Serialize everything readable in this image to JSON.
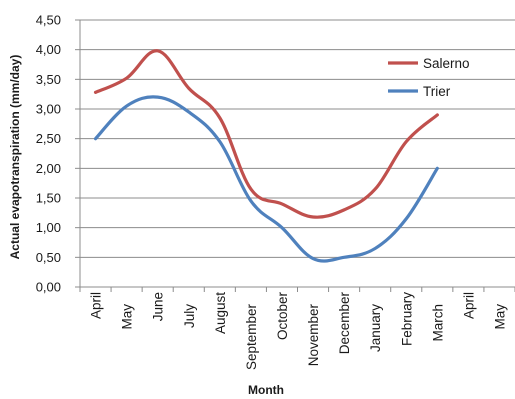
{
  "chart_data": {
    "type": "line",
    "title": "",
    "xlabel": "Month",
    "ylabel": "Actual evapotranspiration  (mm/day)",
    "categories": [
      "April",
      "May",
      "June",
      "July",
      "August",
      "September",
      "October",
      "November",
      "December",
      "January",
      "February",
      "March",
      "April",
      "May"
    ],
    "ylim": [
      0,
      4.5
    ],
    "yticks": [
      "0,00",
      "0,50",
      "1,00",
      "1,50",
      "2,00",
      "2,50",
      "3,00",
      "3,50",
      "4,00",
      "4,50"
    ],
    "grid": true,
    "legend_position": "top-right",
    "series": [
      {
        "name": "Salerno",
        "color": "#c0504d",
        "x": [
          "April",
          "May",
          "June",
          "July",
          "August",
          "September",
          "October",
          "November",
          "December",
          "January",
          "February",
          "March",
          "April"
        ],
        "values": [
          3.28,
          3.52,
          3.98,
          3.35,
          2.85,
          1.65,
          1.4,
          1.18,
          1.3,
          1.65,
          2.45,
          2.9,
          null
        ]
      },
      {
        "name": "Trier",
        "color": "#4f81bd",
        "x": [
          "April",
          "May",
          "June",
          "July",
          "August",
          "September",
          "October",
          "November",
          "December",
          "January",
          "February",
          "March",
          "April"
        ],
        "values": [
          2.5,
          3.05,
          3.2,
          2.95,
          2.45,
          1.45,
          1.0,
          0.48,
          0.5,
          0.65,
          1.15,
          2.0,
          null
        ]
      }
    ]
  }
}
